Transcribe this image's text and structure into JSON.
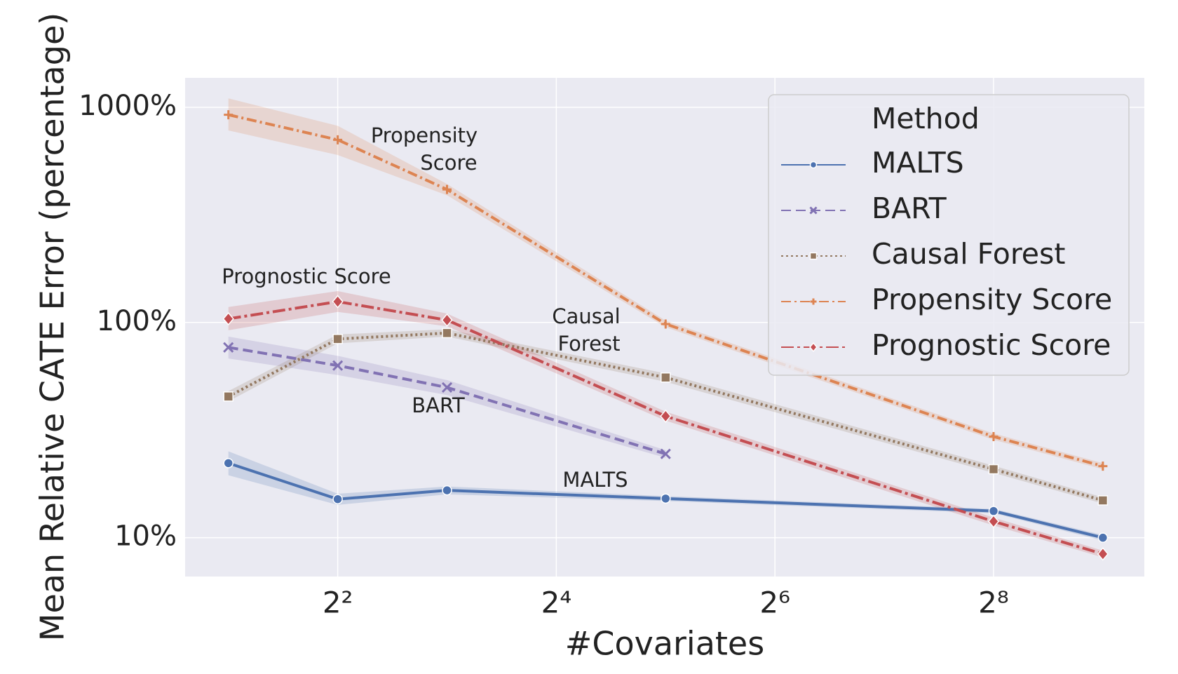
{
  "chart_data": {
    "type": "line",
    "xlabel": "#Covariates",
    "ylabel": "Mean Relative CATE Error (percentage)",
    "x": [
      2,
      4,
      8,
      32,
      256,
      512
    ],
    "xscale": "log2",
    "yscale": "log10",
    "xlim": [
      1.52,
      666
    ],
    "ylim": [
      6.6,
      1370
    ],
    "xticks": [
      {
        "value": 4,
        "label": "2²"
      },
      {
        "value": 16,
        "label": "2⁴"
      },
      {
        "value": 64,
        "label": "2⁶"
      },
      {
        "value": 256,
        "label": "2⁸"
      }
    ],
    "yticks": [
      {
        "value": 10,
        "label": "10%"
      },
      {
        "value": 100,
        "label": "100%"
      },
      {
        "value": 1000,
        "label": "1000%"
      }
    ],
    "grid": true,
    "legend_title": "Method",
    "legend": "upper right",
    "series": [
      {
        "name": "MALTS",
        "color": "#4c72b0",
        "linestyle": "solid",
        "marker": "circle",
        "values": [
          22.2,
          15.1,
          16.6,
          15.2,
          13.3,
          10.0
        ],
        "lower": [
          19.5,
          14.2,
          15.9,
          14.8,
          13.0,
          9.7
        ],
        "upper": [
          25.2,
          16.0,
          17.3,
          15.6,
          13.6,
          10.3
        ]
      },
      {
        "name": "BART",
        "color": "#8172b3",
        "linestyle": "dashed",
        "marker": "x",
        "values": [
          76.6,
          63.1,
          49.9,
          24.5,
          null,
          null
        ],
        "lower": [
          68,
          57,
          46,
          23.5,
          null,
          null
        ],
        "upper": [
          86,
          70,
          54,
          25.5,
          null,
          null
        ]
      },
      {
        "name": "Causal Forest",
        "color": "#937860",
        "linestyle": "dotted",
        "marker": "square",
        "values": [
          45.3,
          83.8,
          89.3,
          55.5,
          20.8,
          14.9
        ],
        "lower": [
          43,
          80,
          86,
          53,
          20,
          14.4
        ],
        "upper": [
          48,
          88,
          93,
          58,
          21.6,
          15.4
        ]
      },
      {
        "name": "Propensity Score",
        "color": "#dd8452",
        "linestyle": "dashdot",
        "marker": "plus",
        "values": [
          923,
          706,
          415,
          98.4,
          29.5,
          21.5
        ],
        "lower": [
          780,
          600,
          390,
          95,
          28.5,
          20.8
        ],
        "upper": [
          1100,
          820,
          440,
          102,
          30.5,
          22.2
        ]
      },
      {
        "name": "Prognostic Score",
        "color": "#c44e52",
        "linestyle": "dashdot2",
        "marker": "diamond",
        "values": [
          104,
          125,
          102.6,
          36.7,
          11.9,
          8.4
        ],
        "lower": [
          92,
          112,
          96,
          35,
          11.4,
          8.1
        ],
        "upper": [
          118,
          140,
          110,
          38.5,
          12.4,
          8.7
        ]
      }
    ],
    "annotations": [
      [
        "Propensity",
        "Score"
      ],
      [
        "Prognostic Score"
      ],
      [
        "Causal",
        "Forest"
      ],
      [
        "BART"
      ],
      [
        "MALTS"
      ]
    ]
  }
}
